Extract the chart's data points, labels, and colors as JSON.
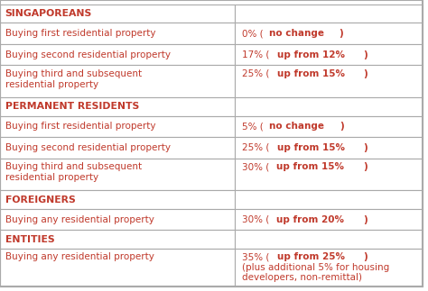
{
  "rows": [
    {
      "type": "header",
      "col1": "SINGAPOREANS",
      "col2_parts": []
    },
    {
      "type": "data",
      "col1": "Buying first residential property",
      "col2_parts": [
        {
          "text": "0% (",
          "bold": false
        },
        {
          "text": "no change",
          "bold": true
        },
        {
          "text": ")",
          "bold": true
        }
      ]
    },
    {
      "type": "data",
      "col1": "Buying second residential property",
      "col2_parts": [
        {
          "text": "17% (",
          "bold": false
        },
        {
          "text": "up from 12%",
          "bold": true
        },
        {
          "text": ")",
          "bold": true
        }
      ]
    },
    {
      "type": "data2",
      "col1": "Buying third and subsequent\nresidential property",
      "col2_parts": [
        {
          "text": "25% (",
          "bold": false
        },
        {
          "text": "up from 15%",
          "bold": true
        },
        {
          "text": ")",
          "bold": true
        }
      ]
    },
    {
      "type": "header",
      "col1": "PERMANENT RESIDENTS",
      "col2_parts": []
    },
    {
      "type": "data",
      "col1": "Buying first residential property",
      "col2_parts": [
        {
          "text": "5% (",
          "bold": false
        },
        {
          "text": "no change",
          "bold": true
        },
        {
          "text": ")",
          "bold": true
        }
      ]
    },
    {
      "type": "data",
      "col1": "Buying second residential property",
      "col2_parts": [
        {
          "text": "25% (",
          "bold": false
        },
        {
          "text": "up from 15%",
          "bold": true
        },
        {
          "text": ")",
          "bold": true
        }
      ]
    },
    {
      "type": "data2",
      "col1": "Buying third and subsequent\nresidential property",
      "col2_parts": [
        {
          "text": "30% (",
          "bold": false
        },
        {
          "text": "up from 15%",
          "bold": true
        },
        {
          "text": ")",
          "bold": true
        }
      ]
    },
    {
      "type": "header",
      "col1": "FOREIGNERS",
      "col2_parts": []
    },
    {
      "type": "data",
      "col1": "Buying any residential property",
      "col2_parts": [
        {
          "text": "30% (",
          "bold": false
        },
        {
          "text": "up from 20%",
          "bold": true
        },
        {
          "text": ")",
          "bold": true
        }
      ]
    },
    {
      "type": "header",
      "col1": "ENTITIES",
      "col2_parts": []
    },
    {
      "type": "data3",
      "col1": "Buying any residential property",
      "col2_parts": [
        {
          "text": "35% (",
          "bold": false
        },
        {
          "text": "up from 25%",
          "bold": true
        },
        {
          "text": ")",
          "bold": true
        },
        {
          "text": "\n(plus additional 5% for housing\ndevelopers, non-remittal)",
          "bold": false
        }
      ]
    }
  ],
  "col_split": 0.555,
  "header_color": "#c0392b",
  "data_color": "#c0392b",
  "bg_color": "#ffffff",
  "border_color": "#aaaaaa",
  "row_heights": {
    "header": 0.068,
    "data": 0.078,
    "data2": 0.118,
    "data3": 0.14
  },
  "fig_width": 4.74,
  "fig_height": 3.23,
  "fontsize": 7.5,
  "header_fontsize": 7.8
}
